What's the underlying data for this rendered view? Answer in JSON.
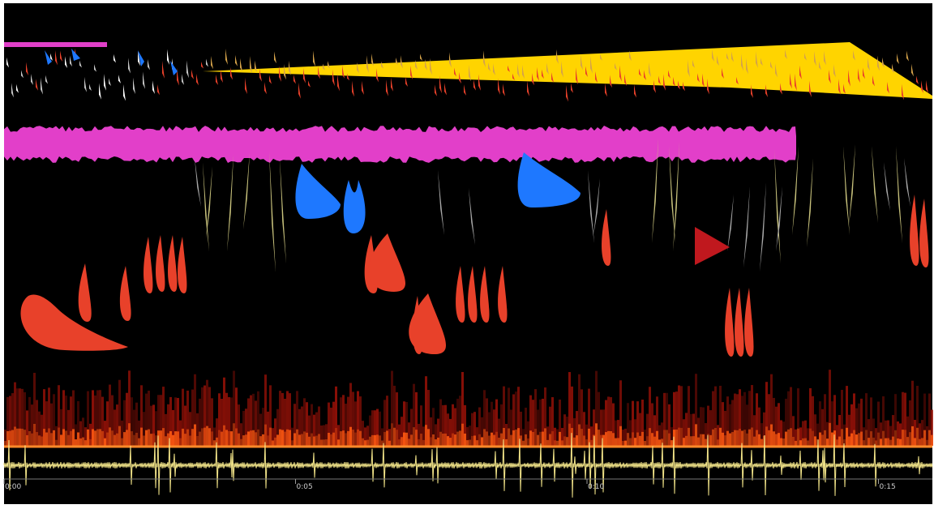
{
  "timeline": {
    "labels": [
      "0:00",
      "0:05",
      "0:10",
      "0:15"
    ]
  }
}
